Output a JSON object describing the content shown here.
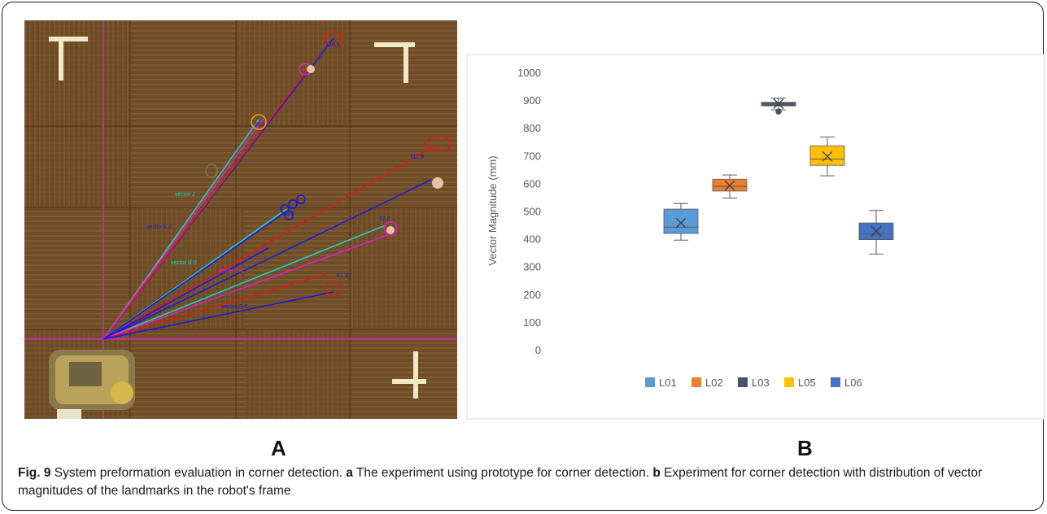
{
  "figure": {
    "panel_a_label": "A",
    "panel_b_label": "B",
    "caption": {
      "fig_label": "Fig. 9",
      "part1": " System preformation evaluation in corner detection. ",
      "a_letter": "a",
      "part2": " The experiment using prototype for corner detection. ",
      "b_letter": "b",
      "part3": " Experiment for corner detection with distribution of vector magnitudes of the landmarks in the robot's frame"
    }
  },
  "photo": {
    "vector_labels": [
      "vector J",
      "vector K 0",
      "vector B 0",
      "vector F 0",
      "vector G 0"
    ],
    "readouts": [
      "136.5",
      "35.7",
      "112.8",
      "85.3",
      "12.8",
      "61.41"
    ]
  },
  "chart_data": {
    "type": "box",
    "ylabel": "Vector Magnitude (mm)",
    "xlabel": "",
    "ylim": [
      0,
      1000
    ],
    "yticks": [
      0,
      100,
      200,
      300,
      400,
      500,
      600,
      700,
      800,
      900,
      1000
    ],
    "grid": false,
    "legend_position": "bottom",
    "series": [
      {
        "name": "L01",
        "color": "#5b9bd5",
        "whisker_low": 398,
        "q1": 422,
        "median": 445,
        "mean": 460,
        "q3": 510,
        "whisker_high": 530,
        "outliers": []
      },
      {
        "name": "L02",
        "color": "#ed7d31",
        "whisker_low": 550,
        "q1": 575,
        "median": 592,
        "mean": 595,
        "q3": 618,
        "whisker_high": 633,
        "outliers": []
      },
      {
        "name": "L03",
        "color": "#44546a",
        "whisker_low": 868,
        "q1": 882,
        "median": 888,
        "mean": 890,
        "q3": 895,
        "whisker_high": 910,
        "outliers": [
          862
        ]
      },
      {
        "name": "L05",
        "color": "#ffc000",
        "whisker_low": 630,
        "q1": 668,
        "median": 690,
        "mean": 700,
        "q3": 738,
        "whisker_high": 770,
        "outliers": []
      },
      {
        "name": "L06",
        "color": "#4472c4",
        "whisker_low": 348,
        "q1": 400,
        "median": 420,
        "mean": 430,
        "q3": 460,
        "whisker_high": 505,
        "outliers": []
      }
    ]
  }
}
